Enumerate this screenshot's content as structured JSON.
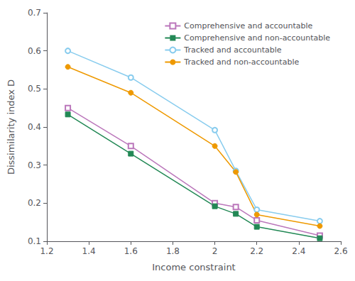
{
  "chart_data": {
    "type": "line",
    "x_label": "Income constraint",
    "y_label": "Dissimilarity index D",
    "x": [
      1.3,
      1.6,
      2.0,
      2.1,
      2.2,
      2.5
    ],
    "series": [
      {
        "name": "Comprehensive and accountable",
        "color": "#bb77bb",
        "marker": "square-open",
        "values": [
          0.45,
          0.35,
          0.2,
          0.19,
          0.155,
          0.115
        ]
      },
      {
        "name": "Comprehensive and non-accountable",
        "color": "#228855",
        "marker": "square",
        "values": [
          0.433,
          0.33,
          0.192,
          0.172,
          0.138,
          0.108
        ]
      },
      {
        "name": "Tracked and accountable",
        "color": "#88ccee",
        "marker": "circle-open",
        "values": [
          0.6,
          0.53,
          0.392,
          0.285,
          0.183,
          0.153
        ]
      },
      {
        "name": "Tracked and non-accountable",
        "color": "#ee9900",
        "marker": "circle",
        "values": [
          0.558,
          0.49,
          0.35,
          0.282,
          0.17,
          0.14
        ]
      }
    ],
    "xlim": [
      1.2,
      2.6
    ],
    "ylim": [
      0.1,
      0.7
    ],
    "xticks": [
      1.2,
      1.4,
      1.6,
      1.8,
      2,
      2.2,
      2.4,
      2.6
    ],
    "yticks": [
      0.1,
      0.2,
      0.3,
      0.4,
      0.5,
      0.6,
      0.7
    ],
    "grid": false,
    "legend": "upper right"
  }
}
